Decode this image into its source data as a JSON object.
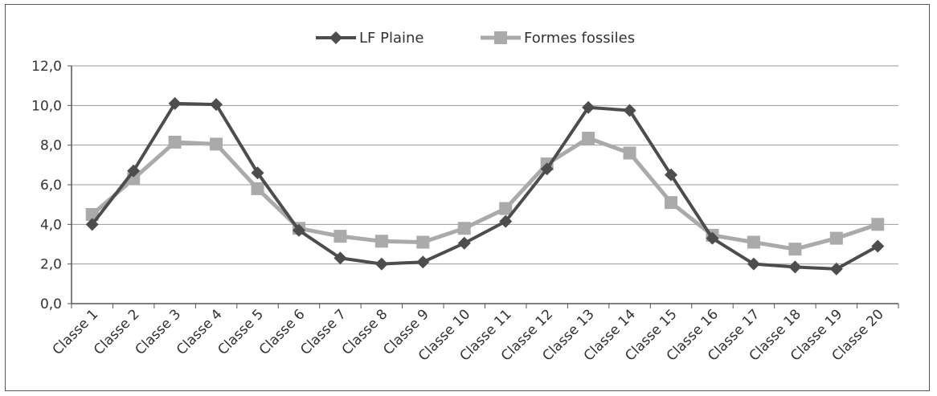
{
  "chart_data": {
    "type": "line",
    "title": "",
    "xlabel": "",
    "ylabel": "",
    "categories": [
      "Classe 1",
      "Classe 2",
      "Classe 3",
      "Classe 4",
      "Classe 5",
      "Classe 6",
      "Classe 7",
      "Classe 8",
      "Classe 9",
      "Classe 10",
      "Classe 11",
      "Classe 12",
      "Classe 13",
      "Classe 14",
      "Classe 15",
      "Classe 16",
      "Classe 17",
      "Classe 18",
      "Classe 19",
      "Classe 20"
    ],
    "ylim": [
      0,
      12
    ],
    "yticks": [
      "0,0",
      "2,0",
      "4,0",
      "6,0",
      "8,0",
      "10,0",
      "12,0"
    ],
    "grid": true,
    "legend_position": "top",
    "series": [
      {
        "name": "LF Plaine",
        "color": "#4d4d4d",
        "marker": "diamond",
        "values": [
          4.0,
          6.7,
          10.1,
          10.05,
          6.6,
          3.7,
          2.3,
          2.0,
          2.1,
          3.05,
          4.15,
          6.8,
          9.9,
          9.75,
          6.5,
          3.3,
          2.0,
          1.85,
          1.75,
          2.9
        ]
      },
      {
        "name": "Formes fossiles",
        "color": "#aaaaaa",
        "marker": "square",
        "values": [
          4.5,
          6.3,
          8.15,
          8.05,
          5.8,
          3.8,
          3.4,
          3.15,
          3.1,
          3.8,
          4.8,
          7.05,
          8.35,
          7.6,
          5.1,
          3.45,
          3.1,
          2.75,
          3.3,
          4.0
        ]
      }
    ]
  }
}
